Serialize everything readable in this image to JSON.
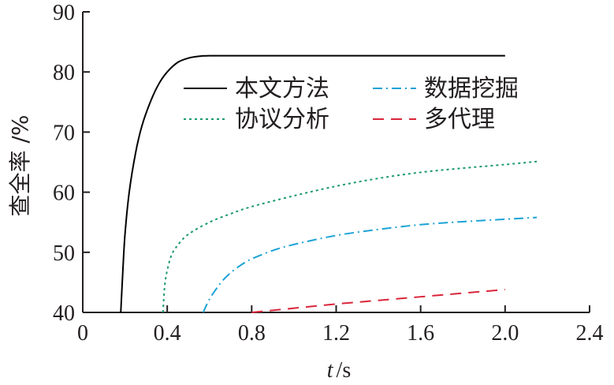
{
  "chart_data": {
    "type": "line",
    "xlabel_var": "t",
    "xlabel_unit": "/s",
    "ylabel": "查全率 /%",
    "xlim": [
      0,
      2.4
    ],
    "ylim": [
      40,
      90
    ],
    "x_ticks": [
      "0",
      "0.4",
      "0.8",
      "1.2",
      "1.6",
      "2.0",
      "2.4"
    ],
    "y_ticks": [
      "40",
      "50",
      "60",
      "70",
      "80",
      "90"
    ],
    "grid": false,
    "legend_position": "top-right",
    "series": [
      {
        "name": "本文方法",
        "color": "#000000",
        "style": "solid",
        "x": [
          0.18,
          0.19,
          0.2,
          0.22,
          0.25,
          0.28,
          0.32,
          0.36,
          0.4,
          0.45,
          0.5,
          0.55,
          0.6,
          0.8,
          1.2,
          1.6,
          2.0
        ],
        "y": [
          40,
          47,
          53,
          60,
          66.5,
          71,
          75,
          78,
          80,
          81.6,
          82.3,
          82.6,
          82.7,
          82.7,
          82.7,
          82.7,
          82.7
        ]
      },
      {
        "name": "协议分析",
        "color": "#1a9a6a",
        "style": "dotted",
        "x": [
          0.38,
          0.385,
          0.39,
          0.4,
          0.42,
          0.45,
          0.5,
          0.6,
          0.7,
          0.8,
          1.0,
          1.2,
          1.4,
          1.6,
          1.8,
          2.0,
          2.15
        ],
        "y": [
          40,
          43,
          45,
          47,
          49.5,
          51.2,
          53,
          55,
          56.4,
          57.6,
          59.4,
          61,
          62.3,
          63.3,
          64,
          64.6,
          65.1
        ]
      },
      {
        "name": "数据挖掘",
        "color": "#1ca3d6",
        "style": "dashdot",
        "x": [
          0.57,
          0.6,
          0.63,
          0.66,
          0.7,
          0.75,
          0.8,
          0.9,
          1.0,
          1.2,
          1.4,
          1.6,
          1.8,
          2.0,
          2.15
        ],
        "y": [
          40,
          42.2,
          43.8,
          45.2,
          46.6,
          47.9,
          48.9,
          50.3,
          51.3,
          52.8,
          53.8,
          54.6,
          55.1,
          55.5,
          55.8
        ]
      },
      {
        "name": "多代理",
        "color": "#d9263a",
        "style": "dashed",
        "x": [
          0.8,
          1.0,
          1.2,
          1.4,
          1.6,
          1.8,
          2.0
        ],
        "y": [
          40,
          40.7,
          41.4,
          42,
          42.6,
          43.2,
          43.8
        ]
      }
    ]
  }
}
